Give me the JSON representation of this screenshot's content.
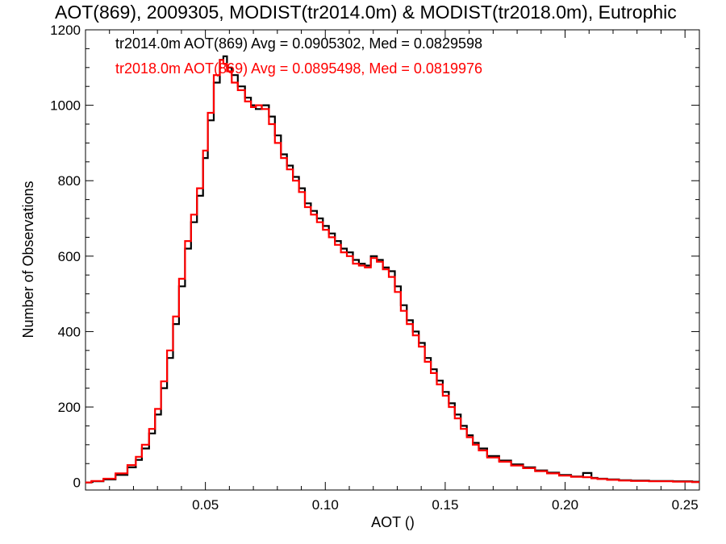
{
  "chart_data": {
    "type": "line",
    "title": "AOT(869), 2009305, MODIST(tr2014.0m) & MODIST(tr2018.0m), Eutrophic",
    "xlabel": "AOT ()",
    "ylabel": "Number of Observations",
    "xlim": [
      0.0,
      0.256
    ],
    "ylim": [
      -20,
      1200
    ],
    "x_ticks": [
      "0.05",
      "0.10",
      "0.15",
      "0.20",
      "0.25"
    ],
    "x_tick_values": [
      0.05,
      0.1,
      0.15,
      0.2,
      0.25
    ],
    "y_ticks": [
      "0",
      "200",
      "400",
      "600",
      "800",
      "1000",
      "1200"
    ],
    "y_tick_values": [
      0,
      200,
      400,
      600,
      800,
      1000,
      1200
    ],
    "step": true,
    "grid": false,
    "legend_position": "top-left",
    "annotations": [
      {
        "text": "tr2014.0m AOT(869) Avg = 0.0905302, Med = 0.0829598",
        "color": "#000000"
      },
      {
        "text": "tr2018.0m AOT(869) Avg = 0.0895498, Med = 0.0819976",
        "color": "#ff0000"
      }
    ],
    "series": [
      {
        "color": "#000000",
        "x": [
          0.0,
          0.005,
          0.01,
          0.015,
          0.02,
          0.022,
          0.025,
          0.028,
          0.03,
          0.033,
          0.035,
          0.038,
          0.04,
          0.043,
          0.045,
          0.048,
          0.05,
          0.052,
          0.055,
          0.057,
          0.058,
          0.06,
          0.062,
          0.065,
          0.068,
          0.07,
          0.072,
          0.075,
          0.078,
          0.08,
          0.083,
          0.085,
          0.088,
          0.09,
          0.093,
          0.095,
          0.098,
          0.1,
          0.103,
          0.105,
          0.108,
          0.11,
          0.113,
          0.115,
          0.118,
          0.12,
          0.123,
          0.125,
          0.128,
          0.13,
          0.133,
          0.135,
          0.138,
          0.14,
          0.143,
          0.145,
          0.148,
          0.15,
          0.153,
          0.155,
          0.158,
          0.16,
          0.163,
          0.165,
          0.17,
          0.175,
          0.18,
          0.185,
          0.19,
          0.195,
          0.2,
          0.205,
          0.21,
          0.212,
          0.215,
          0.22,
          0.225,
          0.23,
          0.24,
          0.25,
          0.256
        ],
        "y": [
          0,
          3,
          8,
          20,
          40,
          60,
          90,
          130,
          180,
          250,
          330,
          420,
          520,
          620,
          690,
          760,
          860,
          960,
          1060,
          1120,
          1130,
          1100,
          1080,
          1050,
          1020,
          1000,
          990,
          1000,
          970,
          920,
          870,
          840,
          810,
          780,
          740,
          720,
          700,
          680,
          660,
          640,
          620,
          610,
          590,
          580,
          575,
          600,
          590,
          570,
          560,
          520,
          470,
          430,
          400,
          370,
          330,
          300,
          270,
          240,
          210,
          180,
          150,
          125,
          105,
          90,
          70,
          58,
          48,
          40,
          32,
          26,
          20,
          16,
          25,
          12,
          10,
          8,
          6,
          5,
          4,
          3,
          2
        ]
      },
      {
        "color": "#ff0000",
        "x": [
          0.0,
          0.005,
          0.01,
          0.015,
          0.02,
          0.022,
          0.025,
          0.028,
          0.03,
          0.033,
          0.035,
          0.038,
          0.04,
          0.043,
          0.045,
          0.048,
          0.05,
          0.052,
          0.055,
          0.057,
          0.058,
          0.06,
          0.062,
          0.065,
          0.068,
          0.07,
          0.072,
          0.075,
          0.078,
          0.08,
          0.083,
          0.085,
          0.088,
          0.09,
          0.093,
          0.095,
          0.098,
          0.1,
          0.103,
          0.105,
          0.108,
          0.11,
          0.113,
          0.115,
          0.118,
          0.12,
          0.123,
          0.125,
          0.128,
          0.13,
          0.133,
          0.135,
          0.138,
          0.14,
          0.143,
          0.145,
          0.148,
          0.15,
          0.153,
          0.155,
          0.158,
          0.16,
          0.163,
          0.165,
          0.17,
          0.175,
          0.18,
          0.185,
          0.19,
          0.195,
          0.2,
          0.205,
          0.21,
          0.212,
          0.215,
          0.22,
          0.225,
          0.23,
          0.24,
          0.25,
          0.256
        ],
        "y": [
          0,
          4,
          10,
          24,
          46,
          68,
          100,
          142,
          195,
          268,
          350,
          440,
          540,
          640,
          710,
          780,
          880,
          980,
          1080,
          1120,
          1110,
          1090,
          1060,
          1040,
          1010,
          995,
          1000,
          990,
          950,
          900,
          860,
          830,
          800,
          770,
          730,
          710,
          690,
          670,
          650,
          630,
          610,
          600,
          580,
          575,
          570,
          595,
          585,
          565,
          545,
          505,
          455,
          420,
          390,
          360,
          320,
          290,
          260,
          230,
          200,
          170,
          142,
          120,
          100,
          85,
          66,
          55,
          45,
          38,
          30,
          24,
          18,
          15,
          14,
          11,
          9,
          7,
          5,
          4,
          3,
          2,
          1
        ]
      }
    ]
  }
}
